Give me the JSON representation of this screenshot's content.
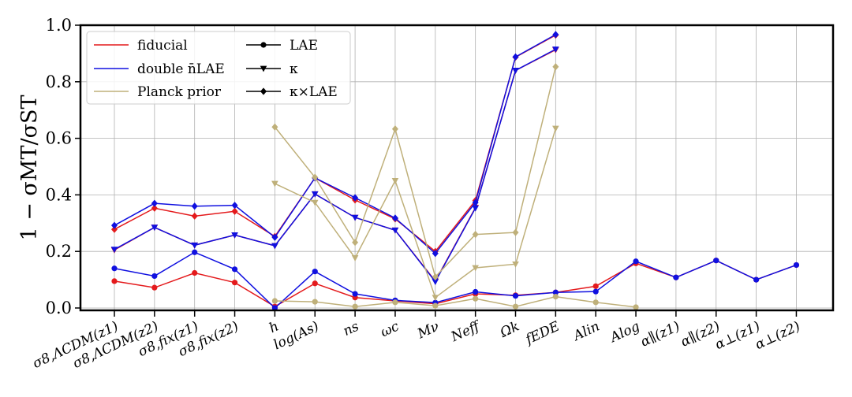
{
  "chart_data": {
    "type": "line",
    "title": "",
    "xlabel": "",
    "ylabel": "1 − σMT/σST",
    "ylim": [
      0.0,
      1.0
    ],
    "yticks": [
      "0.0",
      "0.2",
      "0.4",
      "0.6",
      "0.8",
      "1.0"
    ],
    "grid": true,
    "legend_position": "top-left",
    "categories": [
      "σ8,ΛCDM(z1)",
      "σ8,ΛCDM(z2)",
      "σ8,fix(z1)",
      "σ8,fix(z2)",
      "h",
      "log(As)",
      "ns",
      "ωc",
      "Mν",
      "Neff",
      "Ωk",
      "fEDE",
      "Alin",
      "Alog",
      "α∥(z1)",
      "α∥(z2)",
      "α⊥(z1)",
      "α⊥(z2)"
    ],
    "legend": {
      "colors": [
        {
          "name": "fiducial",
          "color": "#e41a1c"
        },
        {
          "name": "double n̄LAE",
          "color": "#1010e0"
        },
        {
          "name": "Planck prior",
          "color": "#bfb07a"
        }
      ],
      "markers": [
        {
          "name": "LAE",
          "marker": "circle"
        },
        {
          "name": "κ",
          "marker": "triangle-down"
        },
        {
          "name": "κ×LAE",
          "marker": "diamond"
        }
      ]
    },
    "series": [
      {
        "group": "fiducial",
        "tracer": "LAE",
        "color": "#e41a1c",
        "marker": "circle",
        "values": [
          0.095,
          0.072,
          0.124,
          0.09,
          0.005,
          0.087,
          0.037,
          0.025,
          0.015,
          0.05,
          0.045,
          0.055,
          0.077,
          0.158,
          0.108,
          0.168,
          0.1,
          0.152
        ]
      },
      {
        "group": "fiducial",
        "tracer": "κ",
        "color": "#e41a1c",
        "marker": "triangle-down",
        "values": [
          0.205,
          0.285,
          0.222,
          0.258,
          0.22,
          0.403,
          0.32,
          0.275,
          0.095,
          0.355,
          0.84,
          0.913,
          null,
          null,
          null,
          null,
          null,
          null
        ]
      },
      {
        "group": "fiducial",
        "tracer": "κ×LAE",
        "color": "#e41a1c",
        "marker": "diamond",
        "values": [
          0.278,
          0.353,
          0.325,
          0.342,
          0.253,
          0.46,
          0.382,
          0.315,
          0.2,
          0.38,
          0.887,
          0.965,
          null,
          null,
          null,
          null,
          null,
          null
        ]
      },
      {
        "group": "double n̄LAE",
        "tracer": "LAE",
        "color": "#1010e0",
        "marker": "circle",
        "values": [
          0.14,
          0.113,
          0.197,
          0.137,
          0.0,
          0.129,
          0.05,
          0.027,
          0.019,
          0.057,
          0.043,
          0.055,
          0.058,
          0.165,
          0.108,
          0.168,
          0.1,
          0.152
        ]
      },
      {
        "group": "double n̄LAE",
        "tracer": "κ",
        "color": "#1010e0",
        "marker": "triangle-down",
        "values": [
          0.207,
          0.285,
          0.222,
          0.258,
          0.22,
          0.403,
          0.32,
          0.275,
          0.093,
          0.353,
          0.84,
          0.915,
          null,
          null,
          null,
          null,
          null,
          null
        ]
      },
      {
        "group": "double n̄LAE",
        "tracer": "κ×LAE",
        "color": "#1010e0",
        "marker": "diamond",
        "values": [
          0.292,
          0.37,
          0.36,
          0.363,
          0.25,
          0.46,
          0.39,
          0.318,
          0.193,
          0.373,
          0.888,
          0.967,
          null,
          null,
          null,
          null,
          null,
          null
        ]
      },
      {
        "group": "Planck prior",
        "tracer": "LAE",
        "color": "#bfb07a",
        "marker": "circle",
        "values": [
          null,
          null,
          null,
          null,
          0.025,
          0.022,
          0.005,
          0.02,
          0.008,
          0.033,
          0.005,
          0.04,
          0.02,
          0.003,
          null,
          null,
          null,
          null
        ]
      },
      {
        "group": "Planck prior",
        "tracer": "κ",
        "color": "#bfb07a",
        "marker": "triangle-down",
        "values": [
          null,
          null,
          null,
          null,
          0.44,
          0.373,
          0.177,
          0.45,
          0.037,
          0.142,
          0.155,
          0.635,
          null,
          null,
          null,
          null,
          null,
          null
        ]
      },
      {
        "group": "Planck prior",
        "tracer": "κ×LAE",
        "color": "#bfb07a",
        "marker": "diamond",
        "values": [
          null,
          null,
          null,
          null,
          0.64,
          0.462,
          0.232,
          0.633,
          0.11,
          0.26,
          0.267,
          0.853,
          null,
          null,
          null,
          null,
          null,
          null
        ]
      }
    ]
  }
}
